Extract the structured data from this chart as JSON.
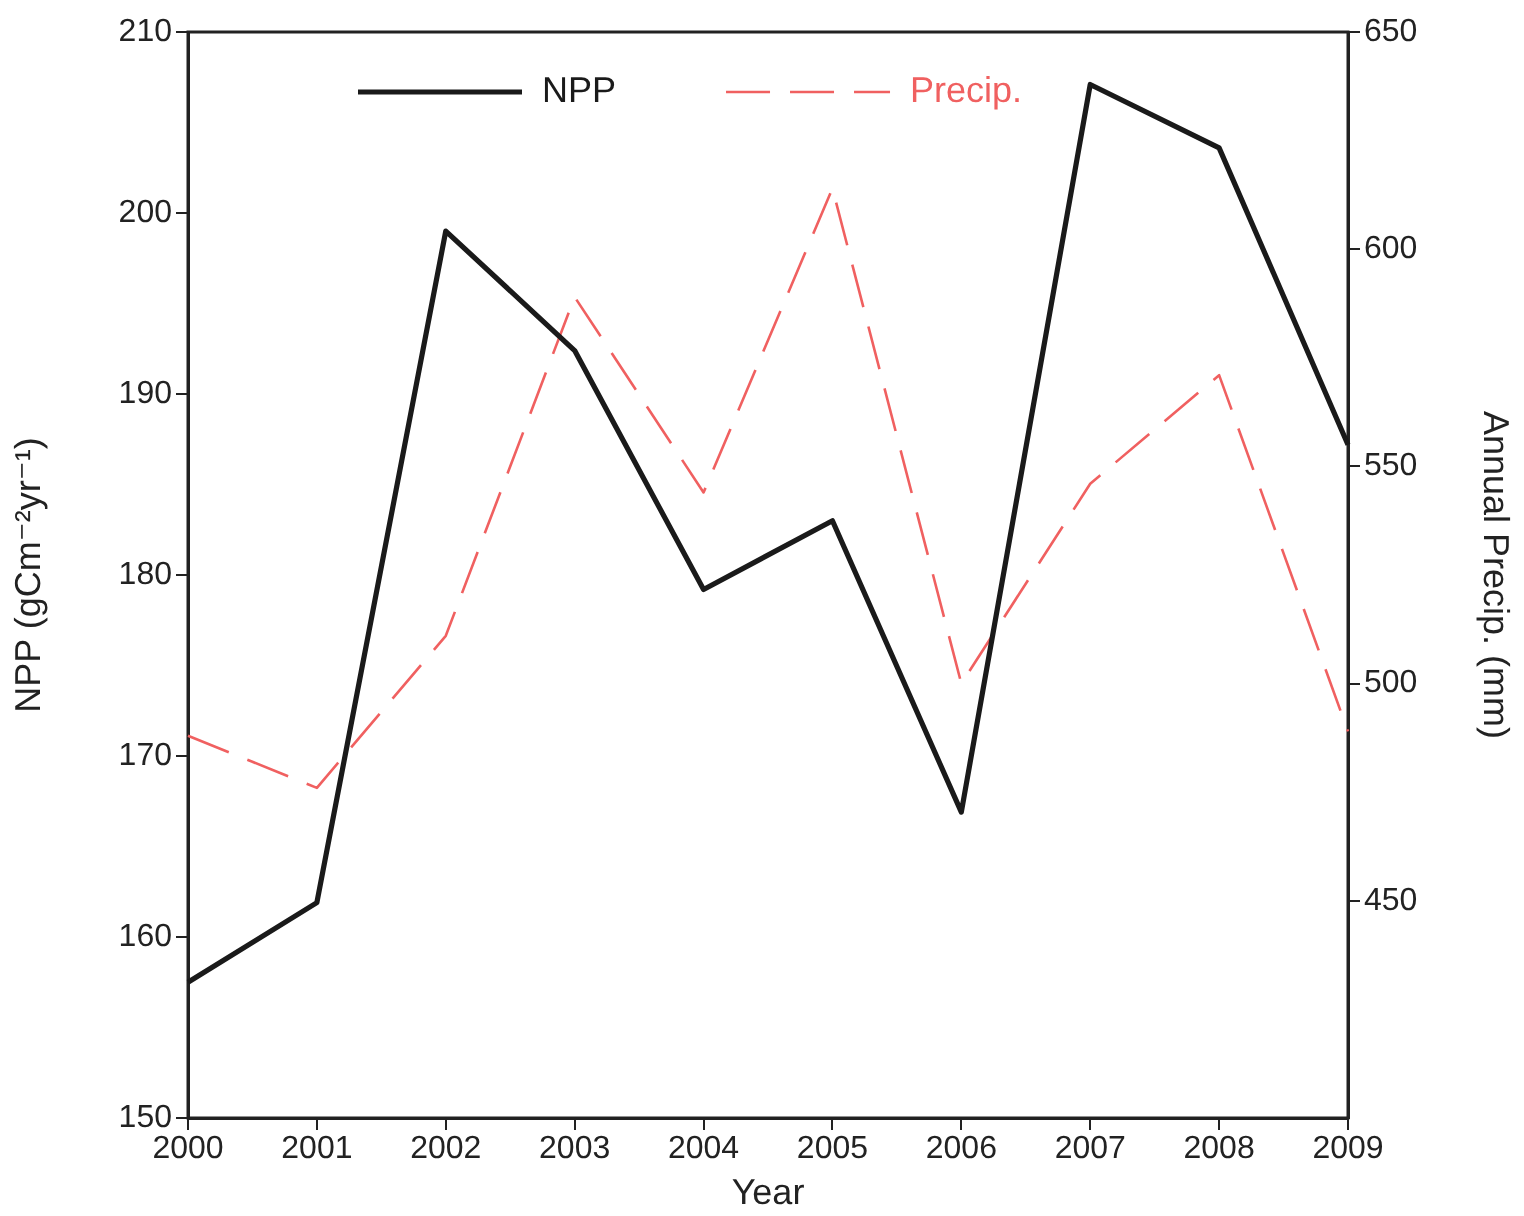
{
  "chart_data": {
    "type": "line",
    "xlabel": "Year",
    "ylabel": "NPP (gCm⁻²yr⁻¹)",
    "y2label": "Annual Precip. (mm)",
    "x": [
      2000,
      2001,
      2002,
      2003,
      2004,
      2005,
      2006,
      2007,
      2008,
      2009
    ],
    "xlim": [
      2000,
      2009
    ],
    "xticks": [
      2000,
      2001,
      2002,
      2003,
      2004,
      2005,
      2006,
      2007,
      2008,
      2009
    ],
    "ylim": [
      150,
      210
    ],
    "yticks": [
      150,
      160,
      170,
      180,
      190,
      200,
      210
    ],
    "y2lim": [
      400,
      650
    ],
    "y2ticks": [
      450,
      500,
      550,
      600,
      650
    ],
    "grid": false,
    "legend": "top",
    "marker": "none",
    "series": [
      {
        "name": "NPP",
        "color": "#1a1a1a",
        "line_style": "solid",
        "values": [
          157.5,
          161.9,
          199.0,
          192.4,
          179.2,
          183.0,
          166.9,
          207.1,
          203.6,
          187.2
        ]
      },
      {
        "name": "Precip.",
        "color": "#f06060",
        "line_style": "dashed",
        "axis": "y2",
        "values": [
          488,
          476,
          511,
          589,
          544,
          614,
          500,
          546,
          571,
          489
        ]
      }
    ]
  }
}
